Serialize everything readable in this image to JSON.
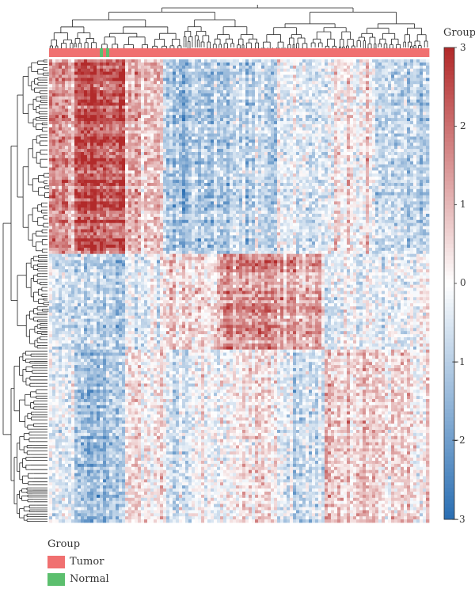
{
  "chart_data": {
    "type": "heatmap",
    "title": "",
    "xlabel": "",
    "ylabel": "",
    "color_scale": {
      "title": "Group",
      "min": -3,
      "max": 3,
      "ticks": [
        "3",
        "2",
        "1",
        "0",
        "−1",
        "−2",
        "−3"
      ],
      "low_color": "#2b6fb3",
      "mid_color": "#ffffff",
      "high_color": "#b22a2a"
    },
    "legend": {
      "title": "Group",
      "position": "bottom-left",
      "entries": [
        {
          "label": "Tumor",
          "color": "#f07070"
        },
        {
          "label": "Normal",
          "color": "#5cbf6e"
        }
      ]
    },
    "annotation_bar": {
      "group": "Group",
      "mostly": "Tumor",
      "minority": "Normal"
    },
    "row_blocks": [
      {
        "cluster": "upper",
        "pattern": "high in left columns, low in right columns"
      },
      {
        "cluster": "middle",
        "pattern": "low in left columns, high in middle columns"
      },
      {
        "cluster": "lower",
        "pattern": "mixed, low in left columns"
      }
    ],
    "row_dendrogram": true,
    "column_dendrogram": true
  }
}
